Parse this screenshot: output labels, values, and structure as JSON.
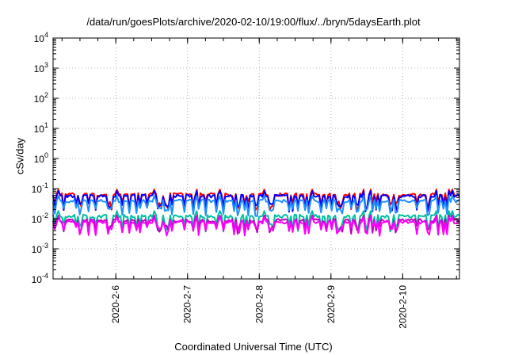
{
  "chart_data": {
    "type": "line",
    "title": "/data/run/goesPlots/archive/2020-02-10/19:00/flux/../bryn/5daysEarth.plot",
    "xlabel": "Coordinated Universal Time (UTC)",
    "ylabel": "cSv/day",
    "x_start": "2020-02-05 03:00",
    "x_end": "2020-02-10 19:00",
    "xlim": [
      "2020-02-05 03:00",
      "2020-02-10 19:00"
    ],
    "x_ticks": [
      "2020-2-6",
      "2020-2-7",
      "2020-2-8",
      "2020-2-9",
      "2020-2-10"
    ],
    "y_scale": "log",
    "ylim": [
      0.0001,
      10000
    ],
    "y_ticks": [
      {
        "value": 0.0001,
        "base": "10",
        "exp": "-4"
      },
      {
        "value": 0.001,
        "base": "10",
        "exp": "-3"
      },
      {
        "value": 0.01,
        "base": "10",
        "exp": "-2"
      },
      {
        "value": 0.1,
        "base": "10",
        "exp": "-1"
      },
      {
        "value": 1,
        "base": "10",
        "exp": "0"
      },
      {
        "value": 10,
        "base": "10",
        "exp": "1"
      },
      {
        "value": 100,
        "base": "10",
        "exp": "2"
      },
      {
        "value": 1000,
        "base": "10",
        "exp": "3"
      },
      {
        "value": 10000,
        "base": "10",
        "exp": "4"
      }
    ],
    "grid": true,
    "series": [
      {
        "color": "#ff0000",
        "base": 0.062,
        "dip_low": 0.032
      },
      {
        "color": "#0000ff",
        "base": 0.055,
        "dip_low": 0.028
      },
      {
        "color": "#1e90ff",
        "base": 0.038,
        "dip_low": 0.02
      },
      {
        "color": "#00c0a0",
        "base": 0.012,
        "dip_low": 0.006
      },
      {
        "color": "#c000c0",
        "base": 0.0085,
        "dip_low": 0.005
      },
      {
        "color": "#ff00ff",
        "base": 0.0075,
        "dip_low": 0.0045
      }
    ]
  }
}
